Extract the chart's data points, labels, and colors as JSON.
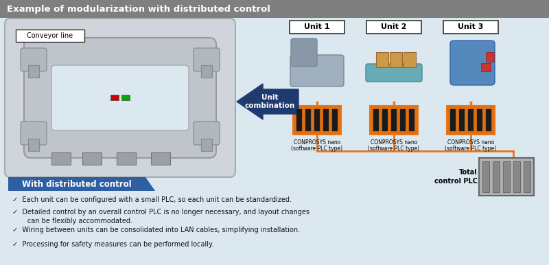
{
  "title": "Example of modularization with distributed control",
  "title_bg_color": "#7f7f7f",
  "title_text_color": "#ffffff",
  "main_bg_color": "#dbe8f0",
  "border_color": "#bbbbbb",
  "conveyor_label": "Conveyor line",
  "unit_labels": [
    "Unit 1",
    "Unit 2",
    "Unit 3"
  ],
  "unit_combination_label": "Unit\ncombination",
  "arrow_color": "#1f3a6e",
  "plc_labels": [
    [
      "CONPROSYS nano",
      "(software PLC type)"
    ],
    [
      "CONPROSYS nano",
      "(software PLC type)"
    ],
    [
      "CONPROSYS nano",
      "(software PLC type)"
    ]
  ],
  "section_header": "With distributed control",
  "section_header_bg": "#2e5fa3",
  "section_header_text": "#ffffff",
  "bullet_points": [
    "Each unit can be configured with a small PLC, so each unit can be standardized.",
    "Detailed control by an overall control PLC is no longer necessary, and layout changes\n    can be flexibly accommodated.",
    "Wiring between units can be consolidated into LAN cables, simplifying installation.",
    "Processing for safety measures can be performed locally."
  ],
  "total_control_label": "Total\ncontrol PLC",
  "orange_color": "#e8751a",
  "plc_orange": "#e07010",
  "dark_slot": "#1a1a1a",
  "check_mark": "✓"
}
